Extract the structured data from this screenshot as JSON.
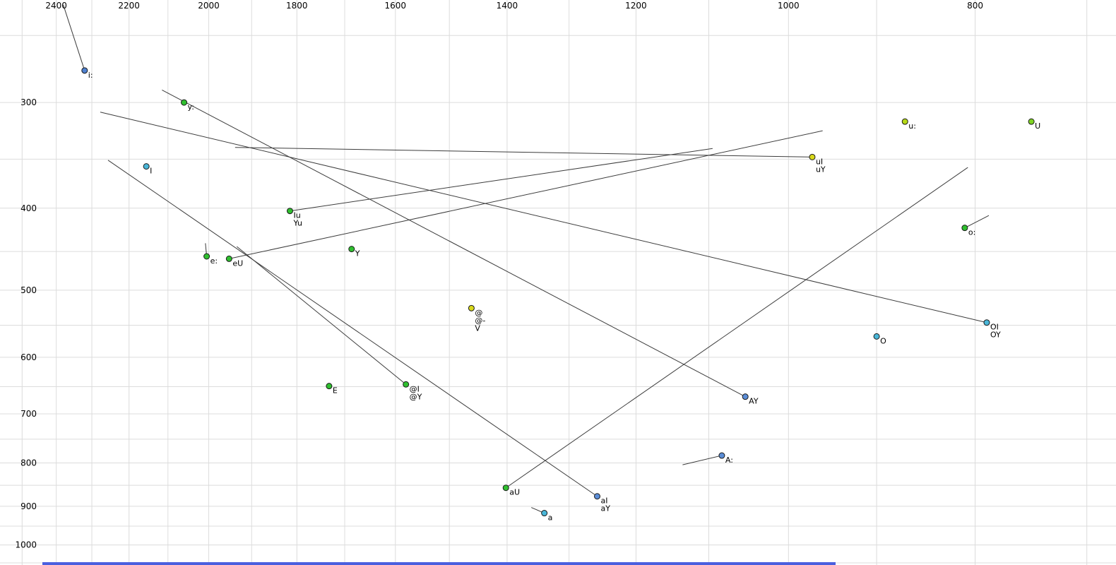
{
  "chart_data": {
    "type": "scatter",
    "description": "Vowel formant chart (F2 horizontal reversed, F1 vertical), log-log scale, with diphthong trajectory lines",
    "x_axis": {
      "tick_labels": [
        "2400",
        "2200",
        "2000",
        "1800",
        "1600",
        "1400",
        "1200",
        "1000",
        "800"
      ],
      "tick_values": [
        2400,
        2200,
        2000,
        1800,
        1600,
        1400,
        1200,
        1000,
        800
      ],
      "domain": [
        2567,
        676
      ],
      "scale": "log",
      "reversed": true,
      "grid_step": 100,
      "grid_range": [
        700,
        2500
      ]
    },
    "y_axis": {
      "tick_labels": [
        "300",
        "400",
        "500",
        "600",
        "700",
        "800",
        "900",
        "1000"
      ],
      "tick_values": [
        300,
        400,
        500,
        600,
        700,
        800,
        900,
        1000
      ],
      "domain": [
        227,
        1056
      ],
      "scale": "log",
      "reversed": false,
      "grid_step": 50,
      "grid_range": [
        250,
        1050
      ]
    },
    "grid_on": true,
    "points": [
      {
        "labels": [
          "i:"
        ],
        "f2": 2320,
        "f1": 275,
        "color": "#4f81d0",
        "trail": {
          "f2": 2380,
          "f1": 230
        }
      },
      {
        "labels": [
          "y:"
        ],
        "f2": 2060,
        "f1": 300,
        "color": "#2fbf2f"
      },
      {
        "labels": [
          "u:"
        ],
        "f2": 870,
        "f1": 316,
        "color": "#b5d916"
      },
      {
        "labels": [
          "U"
        ],
        "f2": 748,
        "f1": 316,
        "color": "#7ed321"
      },
      {
        "labels": [
          "I"
        ],
        "f2": 2155,
        "f1": 357,
        "color": "#49b6d8"
      },
      {
        "labels": [
          "uI",
          "uY"
        ],
        "f2": 972,
        "f1": 348,
        "color": "#d8d81a",
        "trail": {
          "f2": 1938,
          "f1": 339
        }
      },
      {
        "labels": [
          "Iu",
          "Yu"
        ],
        "f2": 1815,
        "f1": 403,
        "color": "#2fbf2f",
        "trail": {
          "f2": 1095,
          "f1": 340
        }
      },
      {
        "labels": [
          "o:"
        ],
        "f2": 810,
        "f1": 422,
        "color": "#2fbf2f",
        "trail": {
          "f2": 787,
          "f1": 408
        }
      },
      {
        "labels": [
          "e:"
        ],
        "f2": 2005,
        "f1": 456,
        "color": "#2fbf2f",
        "trail": {
          "f2": 2008,
          "f1": 440
        }
      },
      {
        "labels": [
          "eU"
        ],
        "f2": 1952,
        "f1": 459,
        "color": "#2fbf2f",
        "trail": {
          "f2": 960,
          "f1": 324
        }
      },
      {
        "labels": [
          "Y"
        ],
        "f2": 1686,
        "f1": 447,
        "color": "#2fbf2f"
      },
      {
        "labels": [
          "@",
          "@-",
          "V"
        ],
        "f2": 1461,
        "f1": 525,
        "color": "#d8d81a"
      },
      {
        "labels": [
          "OI",
          "OY"
        ],
        "f2": 789,
        "f1": 546,
        "color": "#49b6d8",
        "trail": {
          "f2": 2277,
          "f1": 308
        }
      },
      {
        "labels": [
          "O"
        ],
        "f2": 900,
        "f1": 567,
        "color": "#49b6d8"
      },
      {
        "labels": [
          "E"
        ],
        "f2": 1732,
        "f1": 649,
        "color": "#2fbf2f"
      },
      {
        "labels": [
          "@I",
          "@Y"
        ],
        "f2": 1580,
        "f1": 646,
        "color": "#2fbf2f",
        "trail": {
          "f2": 1934,
          "f1": 444
        }
      },
      {
        "labels": [
          "AY"
        ],
        "f2": 1053,
        "f1": 668,
        "color": "#5b8dd6",
        "trail": {
          "f2": 2115,
          "f1": 290
        }
      },
      {
        "labels": [
          "A:"
        ],
        "f2": 1083,
        "f1": 784,
        "color": "#5b8dd6",
        "trail": {
          "f2": 1135,
          "f1": 804
        }
      },
      {
        "labels": [
          "aU"
        ],
        "f2": 1402,
        "f1": 856,
        "color": "#2fbf2f",
        "trail": {
          "f2": 807,
          "f1": 358
        }
      },
      {
        "labels": [
          "aI",
          "aY"
        ],
        "f2": 1257,
        "f1": 876,
        "color": "#5b8dd6",
        "trail": {
          "f2": 2256,
          "f1": 351
        }
      },
      {
        "labels": [
          "a"
        ],
        "f2": 1339,
        "f1": 917,
        "color": "#49b6d8",
        "trail": {
          "f2": 1360,
          "f1": 903
        }
      }
    ],
    "style": {
      "grid_color": "#dcdcdc",
      "trajectory_color": "#3c3c3c",
      "dot_outline": "#1a1a1a",
      "tick_label_color": "#000000",
      "point_label_color": "#000000",
      "background": "#ffffff",
      "bottom_bar_color": "#4a5fdf"
    }
  }
}
